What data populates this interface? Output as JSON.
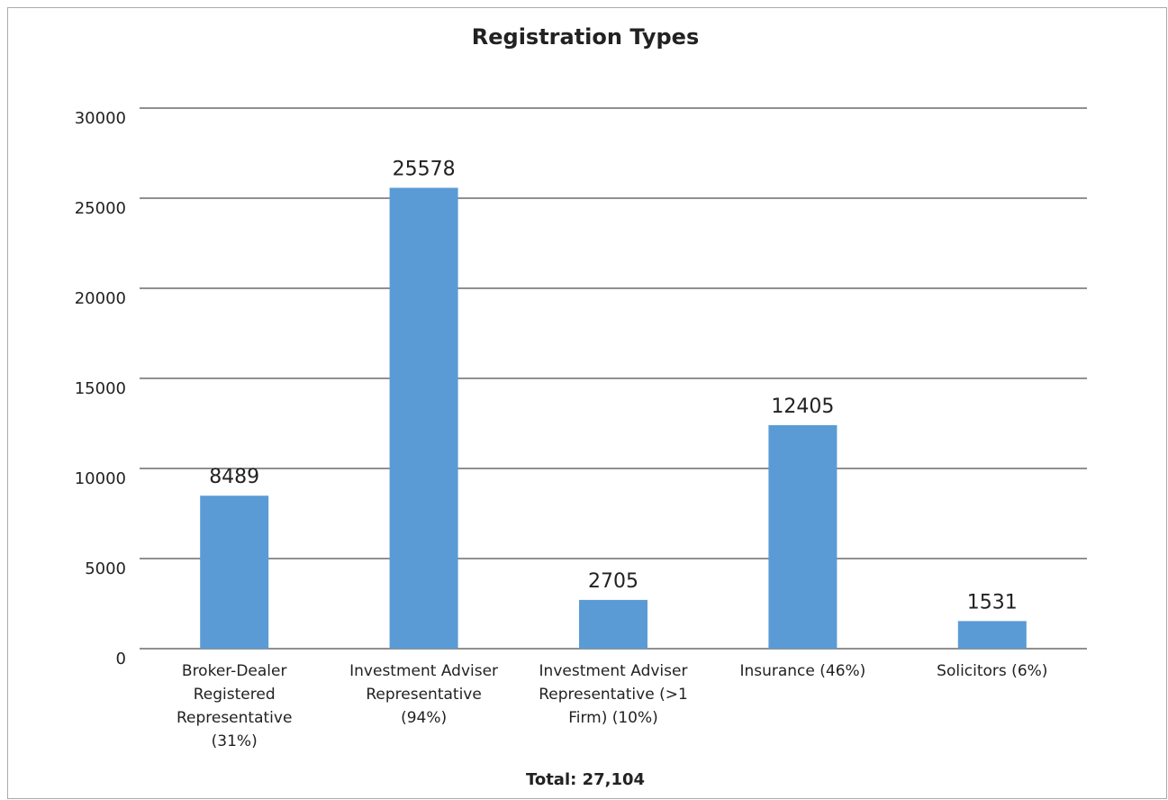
{
  "chart_data": {
    "type": "bar",
    "title": "Registration Types",
    "categories": [
      "Broker-Dealer Registered Representative (31%)",
      "Investment Adviser Representative (94%)",
      "Investment Adviser Representative (>1 Firm) (10%)",
      "Insurance (46%)",
      "Solicitors (6%)"
    ],
    "values": [
      8489,
      25578,
      2705,
      12405,
      1531
    ],
    "color": "#5b9bd5",
    "ylim": [
      0,
      30000
    ],
    "yticks": [
      0,
      5000,
      10000,
      15000,
      20000,
      25000,
      30000
    ],
    "grid": true,
    "annotation": "Total: 27,104"
  }
}
